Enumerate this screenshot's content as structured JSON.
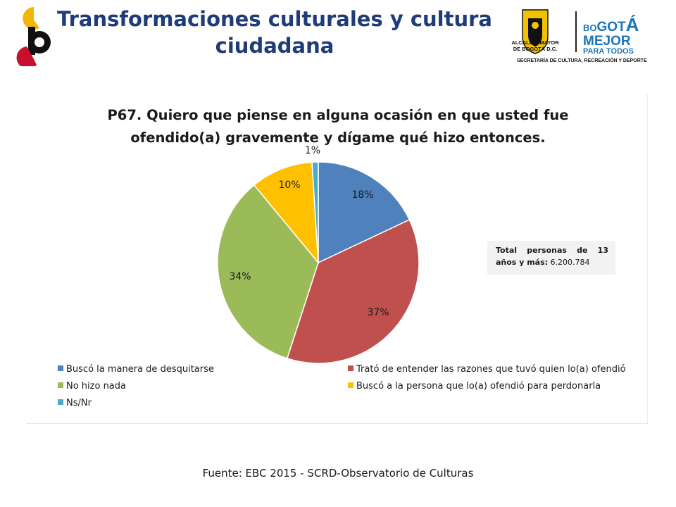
{
  "header": {
    "title_line1": "Transformaciones culturales y cultura",
    "title_line2": "ciudadana",
    "right_logo": {
      "alcaldia_line1": "ALCALDÍA MAYOR",
      "alcaldia_line2": "DE BOGOTÁ D.C.",
      "bogota_top_a": "BO",
      "bogota_top_b": "GOT",
      "bogota_top_c": "Á",
      "bogota_mejor": "MEJOR",
      "bogota_para": "PARA TODOS",
      "secretaria": "SECRETARÍA DE CULTURA, RECREACIÓN Y DEPORTE"
    },
    "colors": {
      "title": "#1f3b7a",
      "logo_yellow": "#f2b705",
      "logo_red": "#c8102e",
      "logo_black": "#111111",
      "bogota_blue": "#1b75bb"
    }
  },
  "chart_data": {
    "type": "pie",
    "title_line1": "P67. Quiero que piense en alguna ocasión en que usted fue",
    "title_line2": "ofendido(a) gravemente y dígame qué hizo entonces.",
    "slices": [
      {
        "name": "Buscó la manera de desquitarse",
        "value": 18,
        "label": "18%",
        "color": "#4f81bd"
      },
      {
        "name": "Trató de entender las razones que tuvó quien lo(a) ofendió",
        "value": 37,
        "label": "37%",
        "color": "#c0504d"
      },
      {
        "name": "No hizo nada",
        "value": 34,
        "label": "34%",
        "color": "#9bbb59"
      },
      {
        "name": "Buscó a la persona que lo(a) ofendió para perdonarla",
        "value": 10,
        "label": "10%",
        "color": "#ffc000"
      },
      {
        "name": "Ns/Nr",
        "value": 1,
        "label": "1%",
        "color": "#4bacc6"
      }
    ],
    "legend_position": "bottom",
    "annotation": {
      "line1": "Total personas de 13",
      "line2_bold": "años y más:",
      "line2_value": "6.200.784"
    }
  },
  "footer": {
    "source": "Fuente: EBC  2015 - SCRD-Observatorio  de Culturas"
  }
}
